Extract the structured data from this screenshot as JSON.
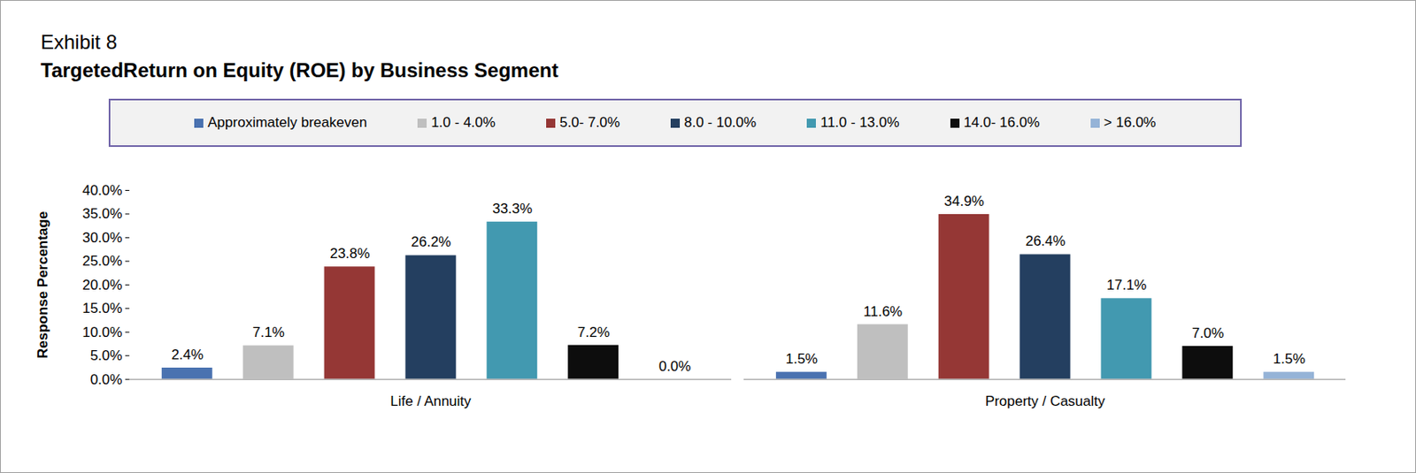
{
  "chart_data": {
    "type": "bar",
    "title": "Exhibit 8",
    "subtitle": "TargetedReturn on Equity (ROE) by Business Segment",
    "y_label": "Response Percentage",
    "categories": [
      "Life / Annuity",
      "Property / Casualty"
    ],
    "series": [
      {
        "name": "Approximately breakeven",
        "color": "#4a72b0",
        "values": [
          2.4,
          1.5
        ],
        "value_labels": [
          "2.4%",
          "1.5%"
        ]
      },
      {
        "name": "1.0 - 4.0%",
        "color": "#bfbfbf",
        "values": [
          7.1,
          11.6
        ],
        "value_labels": [
          "7.1%",
          "11.6%"
        ]
      },
      {
        "name": "5.0- 7.0%",
        "color": "#953735",
        "values": [
          23.8,
          34.9
        ],
        "value_labels": [
          "23.8%",
          "34.9%"
        ]
      },
      {
        "name": "8.0 - 10.0%",
        "color": "#243f60",
        "values": [
          26.2,
          26.4
        ],
        "value_labels": [
          "26.2%",
          "26.4%"
        ]
      },
      {
        "name": "11.0 - 13.0%",
        "color": "#4299b0",
        "values": [
          33.3,
          17.1
        ],
        "value_labels": [
          "33.3%",
          "17.1%"
        ]
      },
      {
        "name": "14.0- 16.0%",
        "color": "#0d0d0d",
        "values": [
          7.2,
          7.0
        ],
        "value_labels": [
          "7.2%",
          "7.0%"
        ]
      },
      {
        "name": "> 16.0%",
        "color": "#95b3d7",
        "values": [
          0.0,
          1.5
        ],
        "value_labels": [
          "0.0%",
          "1.5%"
        ]
      }
    ],
    "ylim": [
      0,
      40
    ],
    "yticks": [
      {
        "value": 0,
        "label": "0.0%"
      },
      {
        "value": 5,
        "label": "5.0%"
      },
      {
        "value": 10,
        "label": "10.0%"
      },
      {
        "value": 15,
        "label": "15.0%"
      },
      {
        "value": 20,
        "label": "20.0%"
      },
      {
        "value": 25,
        "label": "25.0%"
      },
      {
        "value": 30,
        "label": "30.0%"
      },
      {
        "value": 35,
        "label": "35.0%"
      },
      {
        "value": 40,
        "label": "40.0%"
      }
    ],
    "data_labels": true,
    "legend": "top",
    "grid": false
  }
}
